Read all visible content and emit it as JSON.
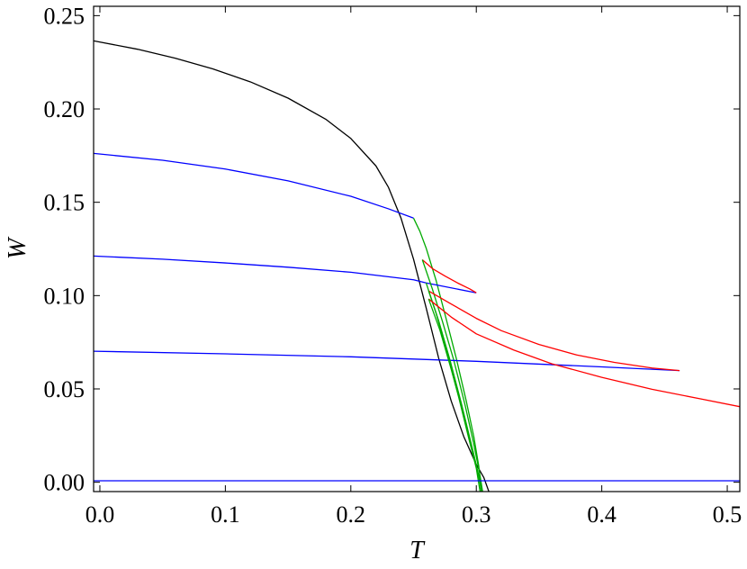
{
  "chart_data": {
    "type": "line",
    "title": "",
    "xlabel": "T",
    "ylabel": "W",
    "xlim": [
      -0.005,
      0.51
    ],
    "ylim": [
      -0.005,
      0.255
    ],
    "grid": false,
    "legend": "none",
    "xticks": [
      {
        "value": 0.0,
        "label": "0.0"
      },
      {
        "value": 0.1,
        "label": "0.1"
      },
      {
        "value": 0.2,
        "label": "0.2"
      },
      {
        "value": 0.3,
        "label": "0.3"
      },
      {
        "value": 0.4,
        "label": "0.4"
      },
      {
        "value": 0.5,
        "label": "0.5"
      }
    ],
    "yticks": [
      {
        "value": 0.0,
        "label": "0.00"
      },
      {
        "value": 0.05,
        "label": "0.05"
      },
      {
        "value": 0.1,
        "label": "0.10"
      },
      {
        "value": 0.15,
        "label": "0.15"
      },
      {
        "value": 0.2,
        "label": "0.20"
      },
      {
        "value": 0.25,
        "label": "0.25"
      }
    ],
    "series": [
      {
        "color": "#000000",
        "points": [
          [
            -0.005,
            0.2365
          ],
          [
            0.03,
            0.232
          ],
          [
            0.06,
            0.2272
          ],
          [
            0.09,
            0.2215
          ],
          [
            0.12,
            0.2145
          ],
          [
            0.15,
            0.2058
          ],
          [
            0.18,
            0.1945
          ],
          [
            0.2,
            0.1842
          ],
          [
            0.22,
            0.1695
          ],
          [
            0.23,
            0.158
          ],
          [
            0.24,
            0.1415
          ],
          [
            0.25,
            0.1195
          ],
          [
            0.26,
            0.0935
          ],
          [
            0.27,
            0.0665
          ],
          [
            0.28,
            0.0435
          ],
          [
            0.29,
            0.0245
          ],
          [
            0.3,
            0.0095
          ],
          [
            0.306,
            0.0025
          ],
          [
            0.31,
            -0.005
          ]
        ]
      },
      {
        "color": "#0000ff",
        "points": [
          [
            -0.005,
            0.1762
          ],
          [
            0.05,
            0.1725
          ],
          [
            0.1,
            0.1678
          ],
          [
            0.15,
            0.1615
          ],
          [
            0.2,
            0.1532
          ],
          [
            0.23,
            0.1465
          ],
          [
            0.25,
            0.1415
          ]
        ]
      },
      {
        "color": "#00aa00",
        "points": [
          [
            0.25,
            0.1415
          ],
          [
            0.255,
            0.1345
          ],
          [
            0.26,
            0.1255
          ],
          [
            0.268,
            0.108
          ],
          [
            0.276,
            0.0875
          ],
          [
            0.284,
            0.0665
          ],
          [
            0.292,
            0.0435
          ],
          [
            0.298,
            0.0245
          ],
          [
            0.302,
            0.0085
          ],
          [
            0.304,
            -0.005
          ]
        ]
      },
      {
        "color": "#0000ff",
        "points": [
          [
            -0.005,
            0.1212
          ],
          [
            0.05,
            0.1195
          ],
          [
            0.1,
            0.1175
          ],
          [
            0.15,
            0.1152
          ],
          [
            0.2,
            0.1125
          ],
          [
            0.25,
            0.1085
          ],
          [
            0.26,
            0.1068
          ]
        ]
      },
      {
        "color": "#0000ff",
        "points": [
          [
            0.26,
            0.1068
          ],
          [
            0.3,
            0.1015
          ]
        ]
      },
      {
        "color": "#ff0000",
        "points": [
          [
            0.257,
            0.1192
          ],
          [
            0.265,
            0.1145
          ],
          [
            0.275,
            0.1105
          ],
          [
            0.285,
            0.1068
          ],
          [
            0.295,
            0.1035
          ],
          [
            0.3,
            0.1015
          ]
        ]
      },
      {
        "color": "#00aa00",
        "points": [
          [
            0.257,
            0.1192
          ],
          [
            0.265,
            0.1035
          ],
          [
            0.273,
            0.0862
          ],
          [
            0.282,
            0.0655
          ],
          [
            0.291,
            0.0415
          ],
          [
            0.298,
            0.0205
          ],
          [
            0.303,
            0.0035
          ],
          [
            0.305,
            -0.005
          ]
        ]
      },
      {
        "color": "#00aa00",
        "points": [
          [
            0.26,
            0.1068
          ],
          [
            0.268,
            0.0905
          ],
          [
            0.277,
            0.0685
          ],
          [
            0.286,
            0.0455
          ],
          [
            0.294,
            0.0235
          ],
          [
            0.3,
            0.0075
          ],
          [
            0.303,
            -0.005
          ]
        ]
      },
      {
        "color": "#0000ff",
        "points": [
          [
            -0.005,
            0.0702
          ],
          [
            0.1,
            0.0688
          ],
          [
            0.2,
            0.0672
          ],
          [
            0.3,
            0.0648
          ],
          [
            0.4,
            0.0618
          ],
          [
            0.462,
            0.0598
          ]
        ]
      },
      {
        "color": "#ff0000",
        "points": [
          [
            0.262,
            0.1025
          ],
          [
            0.28,
            0.0955
          ],
          [
            0.3,
            0.0878
          ],
          [
            0.32,
            0.0812
          ],
          [
            0.35,
            0.0738
          ],
          [
            0.38,
            0.0682
          ],
          [
            0.41,
            0.0642
          ],
          [
            0.44,
            0.0612
          ],
          [
            0.462,
            0.0598
          ]
        ]
      },
      {
        "color": "#00aa00",
        "points": [
          [
            0.262,
            0.1025
          ],
          [
            0.27,
            0.0865
          ],
          [
            0.279,
            0.0655
          ],
          [
            0.288,
            0.0425
          ],
          [
            0.296,
            0.0205
          ],
          [
            0.302,
            0.0035
          ],
          [
            0.304,
            -0.005
          ]
        ]
      },
      {
        "color": "#ff0000",
        "points": [
          [
            0.262,
            0.0982
          ],
          [
            0.28,
            0.0885
          ],
          [
            0.3,
            0.0795
          ],
          [
            0.33,
            0.0708
          ],
          [
            0.36,
            0.0635
          ],
          [
            0.4,
            0.0562
          ],
          [
            0.44,
            0.0498
          ],
          [
            0.48,
            0.0445
          ],
          [
            0.51,
            0.0405
          ]
        ]
      },
      {
        "color": "#00aa00",
        "points": [
          [
            0.262,
            0.0982
          ],
          [
            0.271,
            0.0815
          ],
          [
            0.28,
            0.0605
          ],
          [
            0.289,
            0.0385
          ],
          [
            0.297,
            0.0175
          ],
          [
            0.303,
            -0.0005
          ],
          [
            0.305,
            -0.005
          ]
        ]
      },
      {
        "color": "#0000ff",
        "points": [
          [
            -0.005,
            0.0008
          ],
          [
            0.51,
            0.0008
          ]
        ]
      }
    ]
  }
}
